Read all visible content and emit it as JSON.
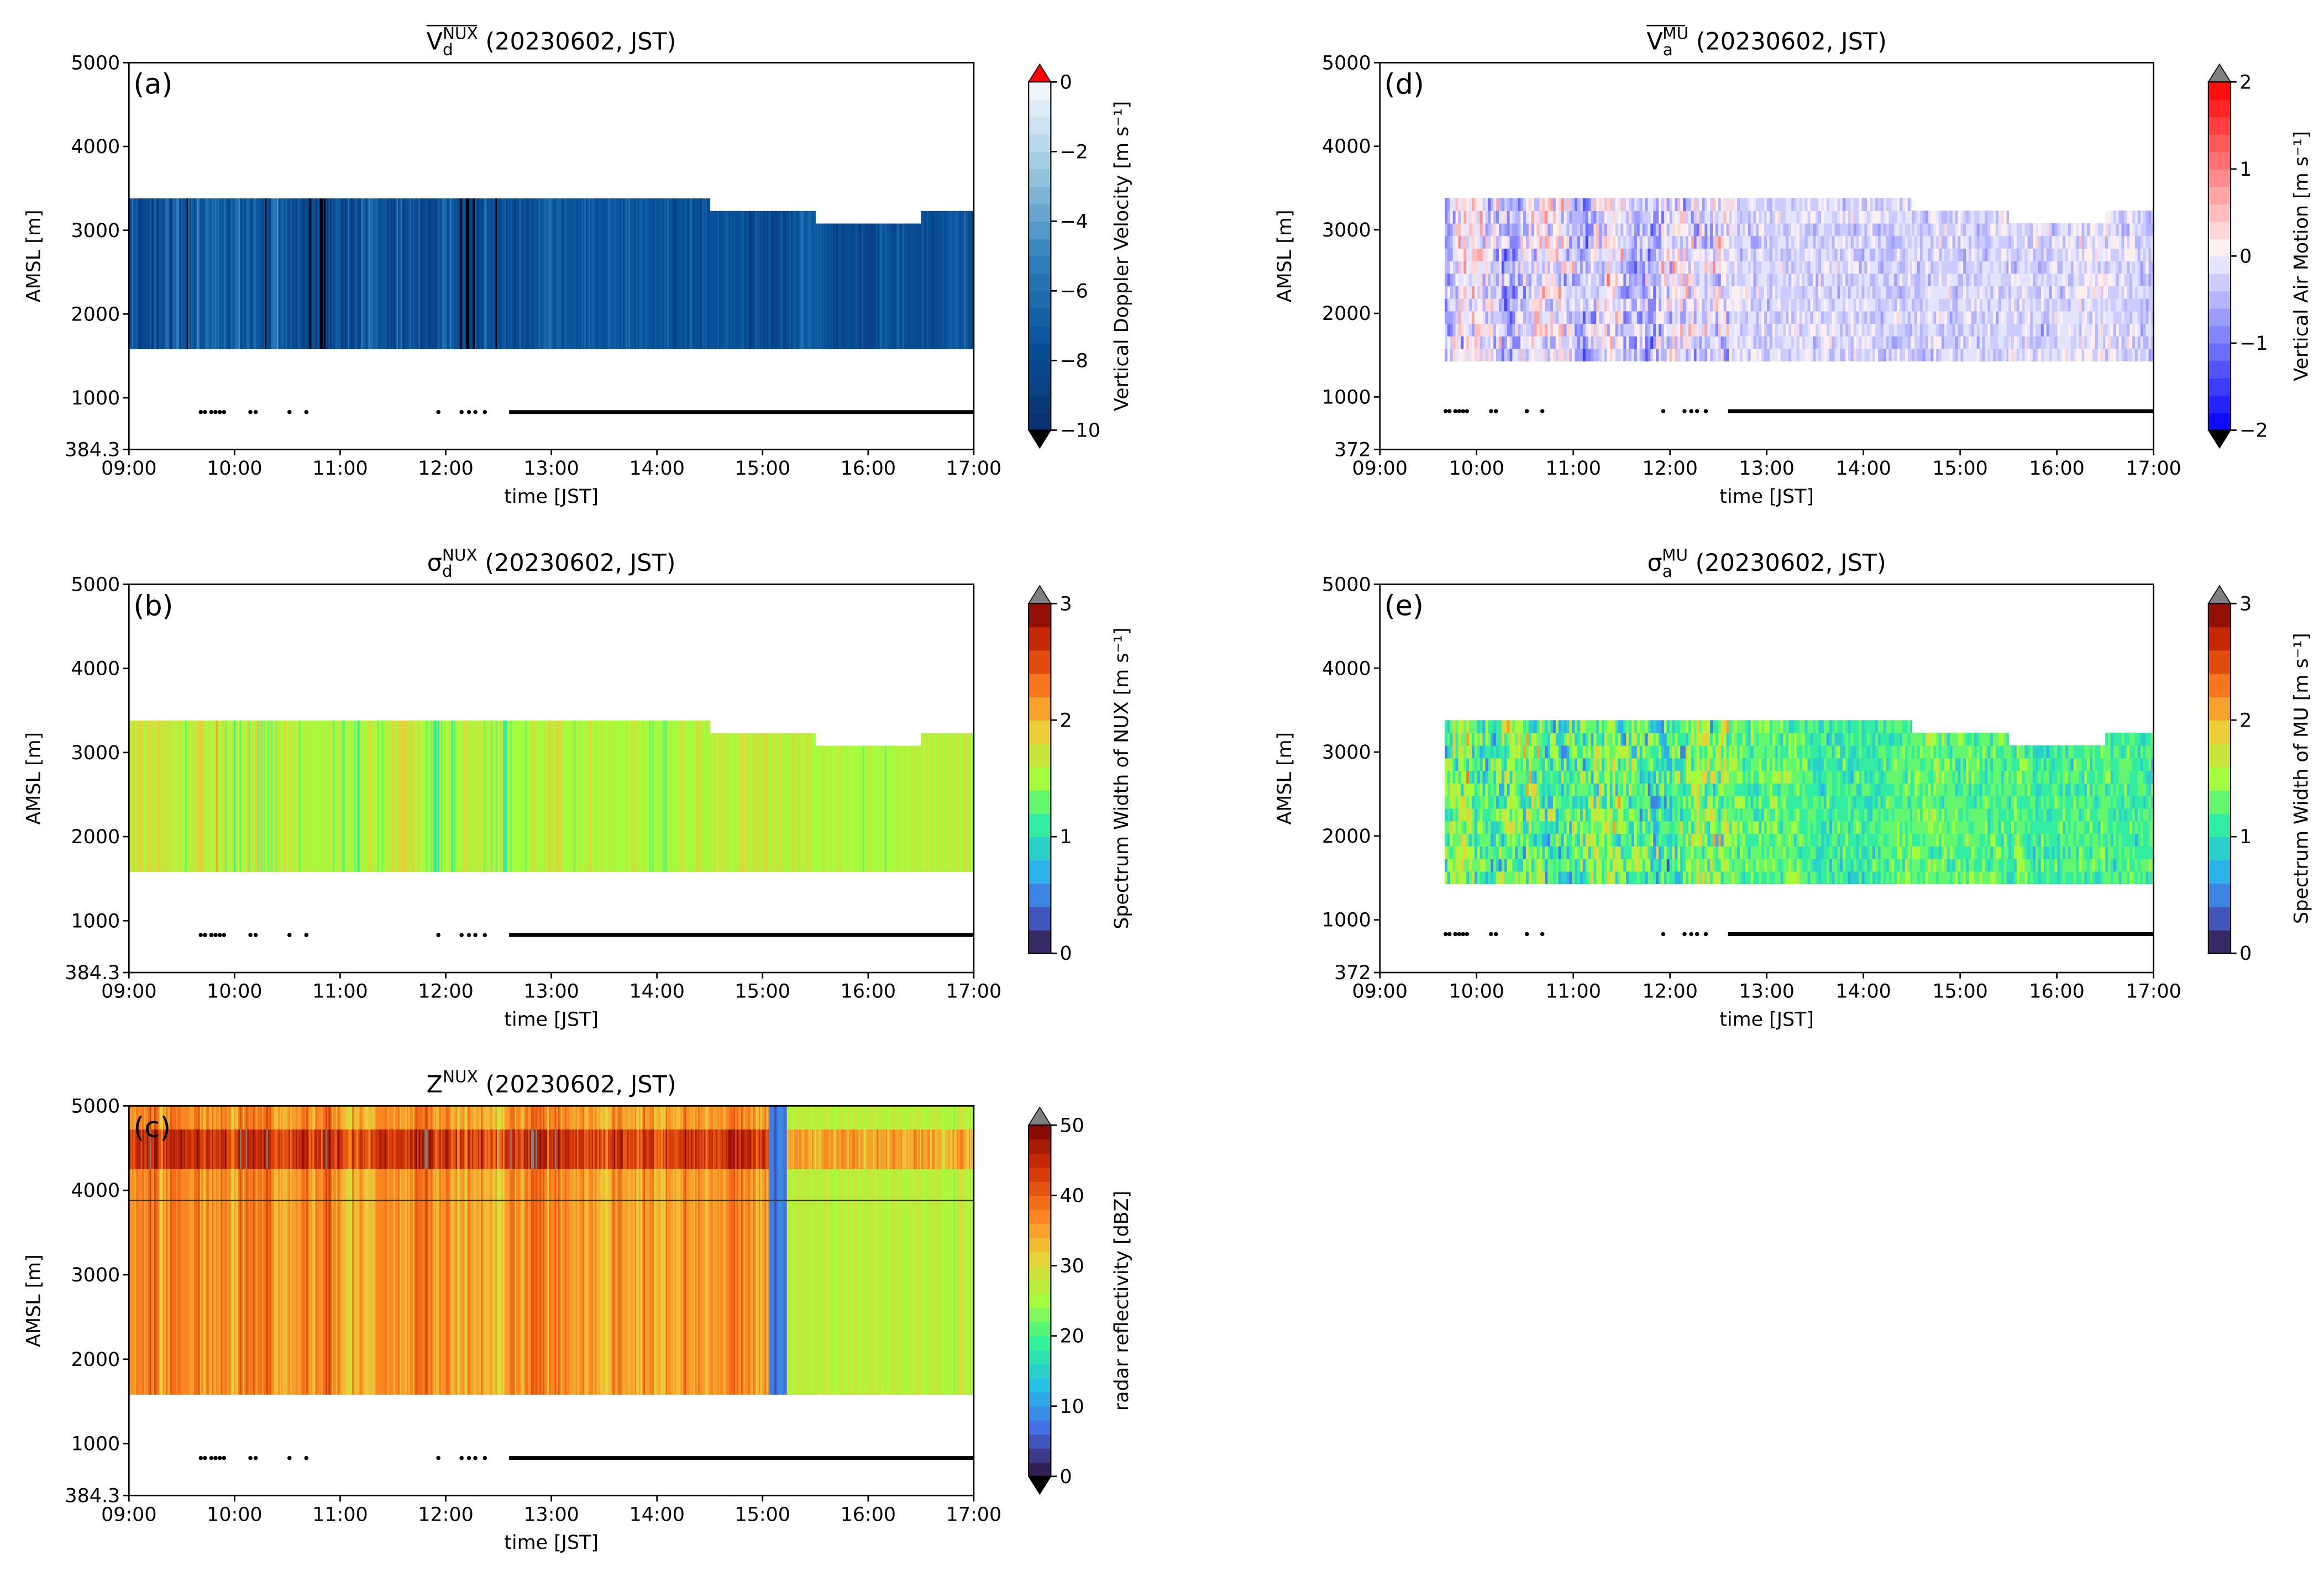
{
  "chart_data": [
    {
      "id": "a",
      "type": "heatmap",
      "panel_label": "(a)",
      "title": {
        "symbol": "V",
        "sub": "d",
        "sup": "NUX",
        "overline": true,
        "rest": " (20230602, JST)"
      },
      "xlabel": "time [JST]",
      "ylabel": "AMSL [m]",
      "xlim": [
        9,
        17
      ],
      "ylim": [
        384.3,
        5000
      ],
      "xticks": [
        "09:00",
        "10:00",
        "11:00",
        "12:00",
        "13:00",
        "14:00",
        "15:00",
        "16:00",
        "17:00"
      ],
      "yticks": [
        384.3,
        1000,
        2000,
        3000,
        4000,
        5000
      ],
      "yticklabels": [
        "384.3",
        "1000",
        "2000",
        "3000",
        "4000",
        "5000"
      ],
      "colorbar": {
        "label": "Vertical Doppler Velocity [m s⁻¹]",
        "range": [
          -10,
          0
        ],
        "ticks": [
          "0",
          "−2",
          "−4",
          "−6",
          "−8",
          "−10"
        ],
        "levels": 20,
        "cmap": "blues",
        "extend_top": "#ff0000",
        "extend_bottom": "#000000"
      },
      "data_start": 9.0,
      "data_bottom": 1580,
      "top_segments": [
        [
          9.0,
          14.5,
          3380
        ],
        [
          14.5,
          15.5,
          3230
        ],
        [
          15.5,
          16.5,
          3080
        ],
        [
          16.5,
          17.0,
          3230
        ]
      ],
      "value_mean": -7.5,
      "value_spread": 1.6,
      "mode": "stripes"
    },
    {
      "id": "b",
      "type": "heatmap",
      "panel_label": "(b)",
      "title": {
        "symbol": "σ",
        "sub": "d",
        "sup": "NUX",
        "overline": false,
        "rest": " (20230602, JST)"
      },
      "xlabel": "time [JST]",
      "ylabel": "AMSL [m]",
      "xlim": [
        9,
        17
      ],
      "ylim": [
        384.3,
        5000
      ],
      "xticks": [
        "09:00",
        "10:00",
        "11:00",
        "12:00",
        "13:00",
        "14:00",
        "15:00",
        "16:00",
        "17:00"
      ],
      "yticks": [
        384.3,
        1000,
        2000,
        3000,
        4000,
        5000
      ],
      "yticklabels": [
        "384.3",
        "1000",
        "2000",
        "3000",
        "4000",
        "5000"
      ],
      "colorbar": {
        "label": "Spectrum Width of NUX [m s⁻¹]",
        "range": [
          0,
          3
        ],
        "ticks": [
          "3",
          "2",
          "1",
          "0"
        ],
        "levels": 15,
        "cmap": "turbo",
        "extend_top": "#808080",
        "extend_bottom": null
      },
      "data_start": 9.0,
      "data_bottom": 1580,
      "top_segments": [
        [
          9.0,
          14.5,
          3380
        ],
        [
          14.5,
          15.5,
          3230
        ],
        [
          15.5,
          16.5,
          3080
        ],
        [
          16.5,
          17.0,
          3230
        ]
      ],
      "value_mean": 1.55,
      "value_spread": 0.25,
      "mode": "stripes"
    },
    {
      "id": "c",
      "type": "heatmap",
      "panel_label": "(c)",
      "title": {
        "symbol": "Z",
        "sub": "",
        "sup": "NUX",
        "overline": false,
        "rest": " (20230602, JST)"
      },
      "xlabel": "time [JST]",
      "ylabel": "AMSL [m]",
      "xlim": [
        9,
        17
      ],
      "ylim": [
        384.3,
        5000
      ],
      "xticks": [
        "09:00",
        "10:00",
        "11:00",
        "12:00",
        "13:00",
        "14:00",
        "15:00",
        "16:00",
        "17:00"
      ],
      "yticks": [
        384.3,
        1000,
        2000,
        3000,
        4000,
        5000
      ],
      "yticklabels": [
        "384.3",
        "1000",
        "2000",
        "3000",
        "4000",
        "5000"
      ],
      "colorbar": {
        "label": "radar reflectivity [dBZ]",
        "range": [
          0,
          50
        ],
        "ticks": [
          "50",
          "40",
          "30",
          "20",
          "10",
          "0"
        ],
        "levels": 25,
        "cmap": "turbo",
        "extend_top": "#808080",
        "extend_bottom": "#000000"
      },
      "data_start": 9.0,
      "data_bottom": 1580,
      "top_segments": [
        [
          9.0,
          17.0,
          5000
        ]
      ],
      "reference_line_m": 3880,
      "value_mean": 36,
      "value_spread": 5,
      "mode": "reflectivity"
    },
    {
      "id": "d",
      "type": "heatmap",
      "panel_label": "(d)",
      "title": {
        "symbol": "V",
        "sub": "a",
        "sup": "MU",
        "overline": true,
        "rest": " (20230602, JST)"
      },
      "xlabel": "time [JST]",
      "ylabel": "AMSL [m]",
      "xlim": [
        9,
        17
      ],
      "ylim": [
        372,
        5000
      ],
      "xticks": [
        "09:00",
        "10:00",
        "11:00",
        "12:00",
        "13:00",
        "14:00",
        "15:00",
        "16:00",
        "17:00"
      ],
      "yticks": [
        372,
        1000,
        2000,
        3000,
        4000,
        5000
      ],
      "yticklabels": [
        "372",
        "1000",
        "2000",
        "3000",
        "4000",
        "5000"
      ],
      "colorbar": {
        "label": "Vertical Air Motion [m s⁻¹]",
        "range": [
          -2,
          2
        ],
        "ticks": [
          "2",
          "1",
          "0",
          "−1",
          "−2"
        ],
        "levels": 20,
        "cmap": "bwr",
        "extend_top": "#808080",
        "extend_bottom": "#000000"
      },
      "data_start": 9.67,
      "data_bottom": 1430,
      "top_segments": [
        [
          9.67,
          14.5,
          3380
        ],
        [
          14.5,
          15.5,
          3230
        ],
        [
          15.5,
          16.5,
          3080
        ],
        [
          16.5,
          17.0,
          3230
        ]
      ],
      "value_mean": -0.2,
      "value_spread": 0.5,
      "mode": "cells"
    },
    {
      "id": "e",
      "type": "heatmap",
      "panel_label": "(e)",
      "title": {
        "symbol": "σ",
        "sub": "a",
        "sup": "MU",
        "overline": false,
        "rest": " (20230602, JST)"
      },
      "xlabel": "time [JST]",
      "ylabel": "AMSL [m]",
      "xlim": [
        9,
        17
      ],
      "ylim": [
        372,
        5000
      ],
      "xticks": [
        "09:00",
        "10:00",
        "11:00",
        "12:00",
        "13:00",
        "14:00",
        "15:00",
        "16:00",
        "17:00"
      ],
      "yticks": [
        372,
        1000,
        2000,
        3000,
        4000,
        5000
      ],
      "yticklabels": [
        "372",
        "1000",
        "2000",
        "3000",
        "4000",
        "5000"
      ],
      "colorbar": {
        "label": "Spectrum Width of MU [m s⁻¹]",
        "range": [
          0,
          3
        ],
        "ticks": [
          "3",
          "2",
          "1",
          "0"
        ],
        "levels": 15,
        "cmap": "turbo",
        "extend_top": "#808080",
        "extend_bottom": null
      },
      "data_start": 9.67,
      "data_bottom": 1430,
      "top_segments": [
        [
          9.67,
          14.5,
          3380
        ],
        [
          14.5,
          15.5,
          3230
        ],
        [
          15.5,
          16.5,
          3080
        ],
        [
          16.5,
          17.0,
          3230
        ]
      ],
      "value_mean": 1.2,
      "value_spread": 0.4,
      "mode": "cells"
    }
  ],
  "marker_row": {
    "altitude_m": 830,
    "sparse_times": [
      9.68,
      9.72,
      9.78,
      9.82,
      9.86,
      9.9,
      10.15,
      10.2,
      10.52,
      10.68,
      11.93,
      12.15,
      12.22,
      12.28,
      12.37
    ],
    "continuous_from": 12.6,
    "continuous_to": 17.0
  }
}
